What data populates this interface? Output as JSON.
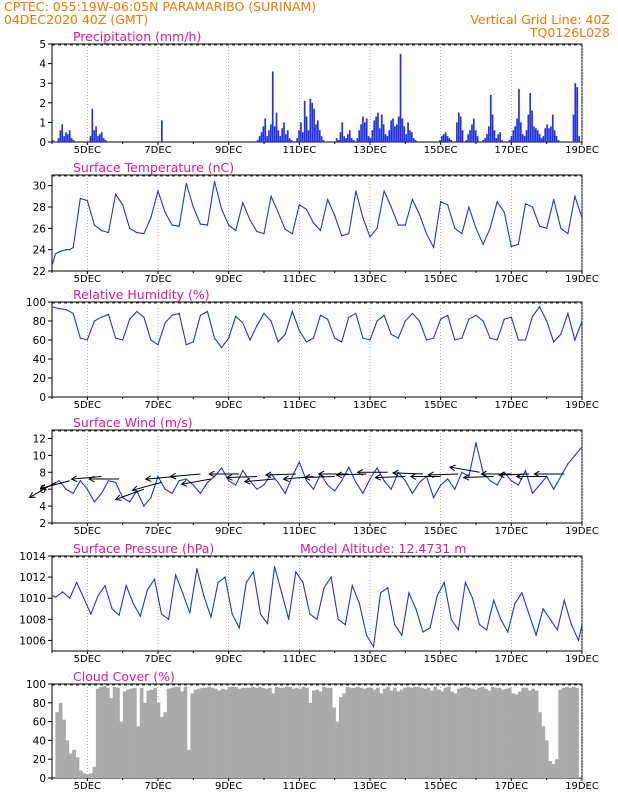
{
  "header": {
    "line1": "CPTEC:   055:19W-06:05N   PARAMARIBO (SURINAM)",
    "line2": "04DEC2020 40Z (GMT)",
    "right1": "Vertical Grid Line: 40Z",
    "right2": "TQ0126L028"
  },
  "colors": {
    "header": "#f07800",
    "title": "#e0189a",
    "series": "#2233dd",
    "cloud": "#aaaaaa",
    "text": "#000000"
  },
  "chart_data": [
    {
      "type": "bar",
      "title": "Precipitation (mm/h)",
      "x_ticks": [
        "5DEC",
        "7DEC",
        "9DEC",
        "11DEC",
        "13DEC",
        "15DEC",
        "17DEC",
        "19DEC"
      ],
      "ylim": [
        0,
        5
      ],
      "y_ticks": [
        0,
        1,
        2,
        3,
        4,
        5
      ],
      "x_range_days": [
        4.0,
        19.0
      ],
      "values": [
        0.1,
        0.0,
        0.0,
        0.2,
        0.6,
        0.9,
        0.3,
        0.5,
        0.4,
        0.6,
        0.2,
        0.1,
        0.0,
        0.0,
        0.0,
        0.0,
        0.0,
        0.0,
        0.0,
        0.0,
        0.3,
        1.7,
        0.6,
        0.8,
        0.3,
        0.4,
        0.5,
        0.2,
        0.1,
        0.0,
        0.0,
        0.0,
        0.0,
        0.0,
        0.0,
        0.0,
        0.0,
        0.0,
        0.0,
        0.0,
        0.0,
        0.0,
        0.0,
        0.0,
        0.0,
        0.0,
        0.0,
        0.0,
        0.0,
        0.0,
        0.0,
        0.0,
        0.0,
        0.0,
        0.0,
        0.0,
        0.0,
        0.0,
        1.1,
        0.0,
        0.0,
        0.0,
        0.0,
        0.0,
        0.0,
        0.0,
        0.0,
        0.0,
        0.0,
        0.0,
        0.0,
        0.0,
        0.0,
        0.0,
        0.0,
        0.0,
        0.0,
        0.0,
        0.0,
        0.0,
        0.0,
        0.0,
        0.0,
        0.0,
        0.0,
        0.0,
        0.0,
        0.0,
        0.0,
        0.0,
        0.0,
        0.0,
        0.0,
        0.0,
        0.0,
        0.0,
        0.0,
        0.0,
        0.0,
        0.0,
        0.0,
        0.0,
        0.0,
        0.0,
        0.0,
        0.0,
        0.0,
        0.0,
        0.0,
        0.1,
        0.3,
        0.5,
        0.8,
        1.2,
        0.3,
        0.6,
        0.9,
        3.6,
        0.8,
        1.5,
        0.6,
        0.3,
        0.7,
        1.0,
        0.4,
        0.6,
        0.2,
        0.1,
        0.0,
        0.0,
        0.2,
        0.6,
        1.0,
        0.5,
        2.1,
        1.3,
        0.6,
        2.2,
        2.0,
        1.7,
        0.9,
        1.1,
        0.6,
        0.3,
        0.1,
        0.0,
        0.0,
        0.0,
        0.0,
        0.0,
        0.0,
        0.2,
        0.1,
        0.5,
        1.0,
        0.3,
        0.2,
        0.4,
        0.6,
        0.2,
        0.1,
        0.0,
        0.2,
        0.6,
        0.9,
        1.3,
        1.0,
        1.2,
        0.3,
        0.2,
        0.6,
        1.1,
        1.3,
        1.5,
        0.7,
        1.4,
        0.9,
        0.4,
        0.3,
        0.6,
        1.1,
        1.2,
        0.8,
        0.9,
        1.3,
        4.5,
        1.2,
        0.8,
        0.4,
        1.0,
        0.6,
        0.5,
        0.2,
        0.1,
        0.0,
        0.0,
        0.0,
        0.0,
        0.0,
        0.0,
        0.0,
        0.0,
        0.0,
        0.0,
        0.0,
        0.0,
        0.1,
        0.3,
        0.4,
        0.5,
        0.3,
        0.2,
        0.1,
        0.0,
        0.0,
        1.0,
        1.5,
        1.3,
        0.6,
        0.0,
        0.1,
        0.4,
        0.6,
        0.9,
        1.2,
        0.6,
        0.3,
        0.0,
        0.0,
        0.1,
        0.2,
        0.4,
        0.8,
        2.4,
        1.4,
        0.6,
        0.2,
        0.4,
        0.5,
        0.1,
        0.0,
        0.0,
        0.0,
        0.1,
        0.3,
        0.6,
        0.8,
        1.2,
        2.7,
        1.0,
        0.4,
        0.3,
        0.6,
        1.4,
        2.5,
        1.6,
        0.8,
        0.7,
        0.6,
        0.4,
        0.2,
        0.3,
        0.7,
        0.9,
        0.7,
        0.8,
        1.4,
        0.6,
        0.3,
        0.1,
        0.0,
        0.0,
        0.0,
        0.0,
        0.0,
        0.0,
        0.0,
        1.4,
        3.0,
        2.8,
        0.3,
        0.0
      ]
    },
    {
      "type": "line",
      "title": "Surface Temperature (nC)",
      "x_ticks": [
        "5DEC",
        "7DEC",
        "9DEC",
        "11DEC",
        "13DEC",
        "15DEC",
        "17DEC",
        "19DEC"
      ],
      "ylim": [
        22,
        31
      ],
      "y_ticks": [
        22,
        24,
        26,
        28,
        30
      ],
      "x": [
        4.0,
        4.1,
        4.2,
        4.4,
        4.5,
        4.6,
        4.8,
        5.0,
        5.2,
        5.4,
        5.6,
        5.8,
        6.0,
        6.2,
        6.4,
        6.6,
        6.8,
        7.0,
        7.2,
        7.4,
        7.6,
        7.8,
        8.0,
        8.2,
        8.4,
        8.6,
        8.8,
        9.0,
        9.2,
        9.4,
        9.6,
        9.8,
        10.0,
        10.2,
        10.4,
        10.6,
        10.8,
        11.0,
        11.2,
        11.4,
        11.6,
        11.8,
        12.0,
        12.2,
        12.4,
        12.6,
        12.8,
        13.0,
        13.2,
        13.4,
        13.6,
        13.8,
        14.0,
        14.2,
        14.4,
        14.6,
        14.8,
        15.0,
        15.2,
        15.4,
        15.6,
        15.8,
        16.0,
        16.2,
        16.4,
        16.6,
        16.8,
        17.0,
        17.2,
        17.4,
        17.6,
        17.8,
        18.0,
        18.2,
        18.4,
        18.6,
        18.8,
        19.0
      ],
      "values": [
        22.5,
        23.6,
        23.8,
        24.0,
        24.0,
        24.2,
        28.8,
        28.6,
        26.3,
        25.8,
        25.6,
        29.2,
        28.2,
        26.0,
        25.6,
        25.5,
        27.0,
        29.5,
        27.5,
        26.3,
        26.2,
        30.2,
        28.0,
        26.4,
        26.3,
        30.4,
        27.8,
        26.3,
        25.8,
        28.4,
        26.8,
        25.7,
        25.5,
        29.0,
        27.5,
        25.9,
        25.5,
        28.2,
        27.8,
        26.5,
        25.8,
        28.7,
        27.2,
        25.3,
        25.5,
        29.5,
        27.0,
        25.2,
        26.0,
        29.5,
        28.0,
        26.3,
        26.3,
        28.7,
        27.3,
        25.5,
        24.2,
        28.5,
        28.2,
        26.0,
        25.5,
        28.0,
        26.0,
        24.5,
        26.0,
        28.5,
        27.5,
        24.3,
        24.5,
        28.3,
        28.0,
        26.2,
        26.0,
        28.7,
        26.0,
        25.5,
        29.0,
        27.0
      ]
    },
    {
      "type": "line",
      "title": "Relative Humidity (%)",
      "x_ticks": [
        "5DEC",
        "7DEC",
        "9DEC",
        "11DEC",
        "13DEC",
        "15DEC",
        "17DEC",
        "19DEC"
      ],
      "ylim": [
        0,
        100
      ],
      "y_ticks": [
        0,
        20,
        40,
        60,
        80,
        100
      ],
      "x": [
        4.0,
        4.2,
        4.4,
        4.6,
        4.8,
        5.0,
        5.2,
        5.4,
        5.6,
        5.8,
        6.0,
        6.2,
        6.4,
        6.6,
        6.8,
        7.0,
        7.2,
        7.4,
        7.6,
        7.8,
        8.0,
        8.2,
        8.4,
        8.6,
        8.8,
        9.0,
        9.2,
        9.4,
        9.6,
        9.8,
        10.0,
        10.2,
        10.4,
        10.6,
        10.8,
        11.0,
        11.2,
        11.4,
        11.6,
        11.8,
        12.0,
        12.2,
        12.4,
        12.6,
        12.8,
        13.0,
        13.2,
        13.4,
        13.6,
        13.8,
        14.0,
        14.2,
        14.4,
        14.6,
        14.8,
        15.0,
        15.2,
        15.4,
        15.6,
        15.8,
        16.0,
        16.2,
        16.4,
        16.6,
        16.8,
        17.0,
        17.2,
        17.4,
        17.6,
        17.8,
        18.0,
        18.2,
        18.4,
        18.6,
        18.8,
        19.0
      ],
      "values": [
        95,
        93,
        92,
        88,
        62,
        60,
        80,
        84,
        87,
        62,
        60,
        82,
        90,
        84,
        60,
        55,
        78,
        86,
        88,
        55,
        58,
        86,
        90,
        62,
        52,
        62,
        85,
        78,
        60,
        75,
        88,
        80,
        58,
        66,
        90,
        70,
        58,
        62,
        86,
        82,
        62,
        58,
        84,
        88,
        62,
        60,
        80,
        86,
        66,
        62,
        80,
        88,
        80,
        60,
        62,
        82,
        86,
        60,
        62,
        82,
        86,
        80,
        62,
        60,
        82,
        84,
        60,
        60,
        85,
        95,
        80,
        58,
        66,
        88,
        60,
        80
      ]
    },
    {
      "type": "line",
      "title": "Surface Wind (m/s)",
      "x_ticks": [
        "5DEC",
        "7DEC",
        "9DEC",
        "11DEC",
        "13DEC",
        "15DEC",
        "17DEC",
        "19DEC"
      ],
      "ylim": [
        2,
        13
      ],
      "y_ticks": [
        2,
        4,
        6,
        8,
        10,
        12
      ],
      "x": [
        4.0,
        4.2,
        4.4,
        4.6,
        4.8,
        5.0,
        5.2,
        5.4,
        5.6,
        5.8,
        6.0,
        6.2,
        6.4,
        6.6,
        6.8,
        7.0,
        7.2,
        7.4,
        7.6,
        7.8,
        8.0,
        8.2,
        8.4,
        8.6,
        8.8,
        9.0,
        9.2,
        9.4,
        9.6,
        9.8,
        10.0,
        10.2,
        10.4,
        10.6,
        10.8,
        11.0,
        11.2,
        11.4,
        11.6,
        11.8,
        12.0,
        12.2,
        12.4,
        12.6,
        12.8,
        13.0,
        13.2,
        13.4,
        13.6,
        13.8,
        14.0,
        14.2,
        14.4,
        14.6,
        14.8,
        15.0,
        15.2,
        15.4,
        15.6,
        15.8,
        16.0,
        16.2,
        16.4,
        16.6,
        16.8,
        17.0,
        17.2,
        17.4,
        17.6,
        17.8,
        18.0,
        18.2,
        18.4,
        18.6,
        18.8,
        19.0
      ],
      "values": [
        6.5,
        7.0,
        6.0,
        5.5,
        7.0,
        6.0,
        4.5,
        5.5,
        7.0,
        6.8,
        5.0,
        4.5,
        5.8,
        4.0,
        5.0,
        7.5,
        6.0,
        5.5,
        7.0,
        7.2,
        6.5,
        5.5,
        6.8,
        7.5,
        8.5,
        7.0,
        6.5,
        8.2,
        7.0,
        6.0,
        6.5,
        7.8,
        6.8,
        5.5,
        7.5,
        9.2,
        7.0,
        6.0,
        7.8,
        6.5,
        5.8,
        7.0,
        8.6,
        6.8,
        5.5,
        7.2,
        8.5,
        7.0,
        6.0,
        8.0,
        7.0,
        5.5,
        6.8,
        7.5,
        5.0,
        6.5,
        7.2,
        6.0,
        8.0,
        7.5,
        11.5,
        8.0,
        7.0,
        6.5,
        8.0,
        7.0,
        6.5,
        8.2,
        5.5,
        6.5,
        7.5,
        6.0,
        7.5,
        9.0,
        10.0,
        11.0
      ],
      "arrows": {
        "x": [
          4.1,
          4.5,
          5.4,
          5.9,
          6.6,
          7.1,
          7.5,
          8.2,
          8.5,
          9.3,
          9.8,
          10.3,
          10.9,
          11.4,
          12.0,
          12.4,
          12.9,
          13.5,
          14.0,
          14.5,
          15.0,
          15.5,
          16.1,
          16.5,
          17.0,
          17.5,
          18.0,
          18.5
        ],
        "speed": [
          6.8,
          7.0,
          7.5,
          7.2,
          6.0,
          6.8,
          7.5,
          7.8,
          7.2,
          7.8,
          7.5,
          7.2,
          7.8,
          7.5,
          7.5,
          7.8,
          7.8,
          8.0,
          7.5,
          7.8,
          7.5,
          7.8,
          8.0,
          7.5,
          7.8,
          7.8,
          7.5,
          7.8
        ],
        "from_dir": [
          60,
          75,
          85,
          90,
          70,
          75,
          85,
          85,
          80,
          90,
          88,
          85,
          88,
          85,
          88,
          90,
          88,
          90,
          88,
          92,
          90,
          88,
          100,
          88,
          90,
          88,
          90,
          90
        ]
      }
    },
    {
      "type": "line",
      "title": "Surface Pressure (hPa)",
      "annotation": "Model Altitude: 12.4731 m",
      "x_ticks": [
        "5DEC",
        "7DEC",
        "9DEC",
        "11DEC",
        "13DEC",
        "15DEC",
        "17DEC",
        "19DEC"
      ],
      "ylim": [
        1005,
        1014
      ],
      "y_ticks": [
        1006,
        1008,
        1010,
        1012,
        1014
      ],
      "x": [
        4.0,
        4.1,
        4.3,
        4.5,
        4.7,
        4.9,
        5.1,
        5.3,
        5.5,
        5.7,
        5.9,
        6.1,
        6.3,
        6.5,
        6.7,
        6.9,
        7.1,
        7.3,
        7.5,
        7.7,
        7.9,
        8.1,
        8.3,
        8.5,
        8.7,
        8.9,
        9.1,
        9.3,
        9.5,
        9.7,
        9.9,
        10.1,
        10.3,
        10.5,
        10.7,
        10.9,
        11.1,
        11.3,
        11.5,
        11.7,
        11.9,
        12.1,
        12.3,
        12.5,
        12.7,
        12.9,
        13.1,
        13.3,
        13.5,
        13.7,
        13.9,
        14.1,
        14.3,
        14.5,
        14.7,
        14.9,
        15.1,
        15.3,
        15.5,
        15.7,
        15.9,
        16.1,
        16.3,
        16.5,
        16.7,
        16.9,
        17.1,
        17.3,
        17.5,
        17.7,
        17.9,
        18.1,
        18.3,
        18.5,
        18.7,
        18.9,
        19.0
      ],
      "values": [
        1010.3,
        1010.1,
        1010.6,
        1010.0,
        1011.5,
        1010.0,
        1008.5,
        1010.2,
        1011.2,
        1009.0,
        1008.4,
        1011.2,
        1009.5,
        1008.3,
        1010.8,
        1011.8,
        1008.5,
        1008.0,
        1012.2,
        1010.5,
        1008.6,
        1012.8,
        1010.2,
        1008.2,
        1011.5,
        1012.0,
        1008.5,
        1007.2,
        1011.5,
        1012.5,
        1008.5,
        1007.6,
        1013.0,
        1010.5,
        1008.0,
        1012.5,
        1011.5,
        1008.5,
        1008.0,
        1011.0,
        1012.0,
        1008.0,
        1007.5,
        1011.2,
        1009.5,
        1006.5,
        1005.4,
        1010.5,
        1011.0,
        1007.5,
        1006.5,
        1010.5,
        1009.0,
        1006.8,
        1007.2,
        1010.2,
        1011.5,
        1008.0,
        1007.0,
        1011.5,
        1010.0,
        1007.5,
        1007.0,
        1009.8,
        1008.0,
        1006.8,
        1009.5,
        1010.5,
        1008.5,
        1006.5,
        1009.0,
        1008.0,
        1007.0,
        1009.8,
        1007.5,
        1006.0,
        1007.5
      ]
    },
    {
      "type": "area",
      "title": "Cloud Cover (%)",
      "x_ticks": [
        "5DEC",
        "7DEC",
        "9DEC",
        "11DEC",
        "13DEC",
        "15DEC",
        "17DEC",
        "19DEC"
      ],
      "ylim": [
        0,
        100
      ],
      "y_ticks": [
        0,
        20,
        40,
        60,
        80,
        100
      ],
      "x_range_days": [
        4.0,
        19.0
      ],
      "values": [
        0,
        70,
        80,
        62,
        40,
        26,
        30,
        22,
        8,
        5,
        4,
        5,
        12,
        95,
        97,
        98,
        96,
        85,
        97,
        96,
        60,
        92,
        94,
        95,
        96,
        55,
        96,
        80,
        93,
        94,
        96,
        80,
        65,
        70,
        95,
        96,
        97,
        97,
        92,
        97,
        30,
        90,
        94,
        95,
        96,
        96,
        97,
        96,
        95,
        93,
        95,
        94,
        97,
        97,
        97,
        95,
        96,
        96,
        96,
        97,
        96,
        97,
        96,
        95,
        96,
        90,
        97,
        96,
        96,
        97,
        97,
        95,
        96,
        95,
        97,
        96,
        80,
        93,
        94,
        92,
        97,
        96,
        96,
        75,
        60,
        86,
        90,
        97,
        96,
        96,
        97,
        96,
        95,
        96,
        96,
        94,
        96,
        90,
        95,
        97,
        93,
        96,
        92,
        94,
        96,
        97,
        96,
        97,
        97,
        96,
        95,
        96,
        93,
        97,
        94,
        92,
        96,
        97,
        92,
        90,
        95,
        96,
        97,
        96,
        95,
        94,
        96,
        97,
        95,
        93,
        97,
        96,
        96,
        94,
        95,
        96,
        90,
        89,
        92,
        96,
        96,
        93,
        95,
        93,
        70,
        55,
        40,
        18,
        15,
        20,
        94,
        96,
        97,
        96,
        97,
        96,
        0
      ]
    }
  ]
}
